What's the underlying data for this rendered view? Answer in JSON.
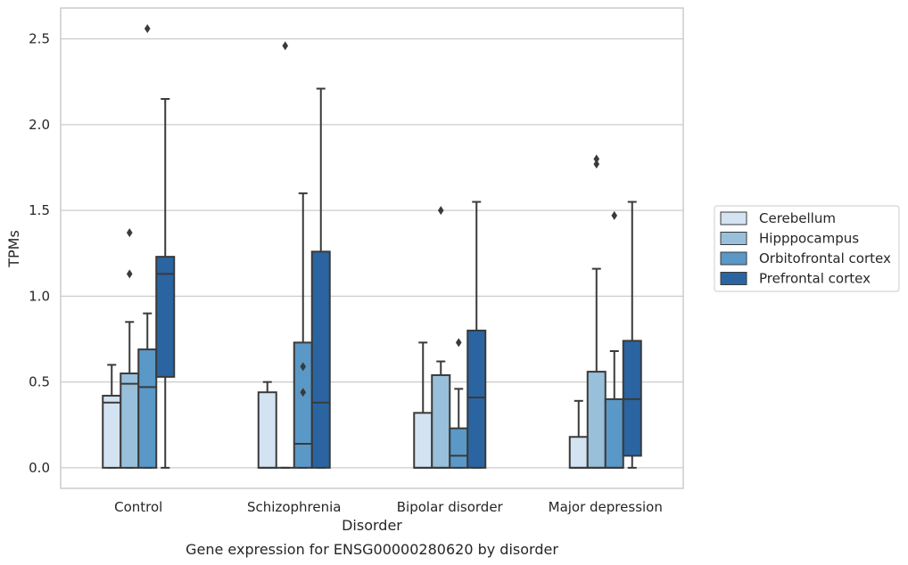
{
  "chart_data": {
    "type": "box",
    "caption": "Gene expression for ENSG00000280620 by disorder",
    "xlabel": "Disorder",
    "ylabel": "TPMs",
    "ylim": [
      -0.12,
      2.68
    ],
    "yticks": [
      "0.0",
      "0.5",
      "1.0",
      "1.5",
      "2.0",
      "2.5"
    ],
    "ytick_values": [
      0.0,
      0.5,
      1.0,
      1.5,
      2.0,
      2.5
    ],
    "grid": "horizontal",
    "legend_position": "right",
    "categories": [
      "Control",
      "Schizophrenia",
      "Bipolar disorder",
      "Major depression"
    ],
    "series": [
      {
        "name": "Cerebellum",
        "color": "#d4e3f2",
        "boxes": [
          {
            "whisker_low": 0.0,
            "q1": 0.0,
            "median": 0.38,
            "q3": 0.42,
            "whisker_high": 0.6,
            "outliers": []
          },
          {
            "whisker_low": 0.0,
            "q1": 0.0,
            "median": 0.0,
            "q3": 0.44,
            "whisker_high": 0.5,
            "outliers": []
          },
          {
            "whisker_low": 0.0,
            "q1": 0.0,
            "median": 0.0,
            "q3": 0.32,
            "whisker_high": 0.73,
            "outliers": []
          },
          {
            "whisker_low": 0.0,
            "q1": 0.0,
            "median": 0.0,
            "q3": 0.18,
            "whisker_high": 0.39,
            "outliers": []
          }
        ]
      },
      {
        "name": "Hipppocampus",
        "color": "#98c0da",
        "boxes": [
          {
            "whisker_low": 0.0,
            "q1": 0.0,
            "median": 0.49,
            "q3": 0.55,
            "whisker_high": 0.85,
            "outliers": [
              1.13,
              1.37
            ]
          },
          {
            "whisker_low": 0.0,
            "q1": 0.0,
            "median": 0.0,
            "q3": 0.0,
            "whisker_high": 0.0,
            "outliers": [
              2.46
            ]
          },
          {
            "whisker_low": 0.0,
            "q1": 0.0,
            "median": 0.0,
            "q3": 0.54,
            "whisker_high": 0.62,
            "outliers": [
              1.5
            ]
          },
          {
            "whisker_low": 0.0,
            "q1": 0.0,
            "median": 0.0,
            "q3": 0.56,
            "whisker_high": 1.16,
            "outliers": [
              1.77,
              1.8
            ]
          }
        ]
      },
      {
        "name": "Orbitofrontal cortex",
        "color": "#5a98c7",
        "boxes": [
          {
            "whisker_low": 0.0,
            "q1": 0.0,
            "median": 0.47,
            "q3": 0.69,
            "whisker_high": 0.9,
            "outliers": [
              2.56
            ]
          },
          {
            "whisker_low": 0.0,
            "q1": 0.0,
            "median": 0.14,
            "q3": 0.73,
            "whisker_high": 1.6,
            "outliers": [
              0.44,
              0.59
            ]
          },
          {
            "whisker_low": 0.0,
            "q1": 0.0,
            "median": 0.07,
            "q3": 0.23,
            "whisker_high": 0.46,
            "outliers": [
              0.73
            ]
          },
          {
            "whisker_low": 0.0,
            "q1": 0.0,
            "median": 0.0,
            "q3": 0.4,
            "whisker_high": 0.68,
            "outliers": [
              1.47
            ]
          }
        ]
      },
      {
        "name": "Prefrontal cortex",
        "color": "#2a65a2",
        "boxes": [
          {
            "whisker_low": 0.0,
            "q1": 0.53,
            "median": 1.13,
            "q3": 1.23,
            "whisker_high": 2.15,
            "outliers": []
          },
          {
            "whisker_low": 0.0,
            "q1": 0.0,
            "median": 0.38,
            "q3": 1.26,
            "whisker_high": 2.21,
            "outliers": []
          },
          {
            "whisker_low": 0.0,
            "q1": 0.0,
            "median": 0.41,
            "q3": 0.8,
            "whisker_high": 1.55,
            "outliers": []
          },
          {
            "whisker_low": 0.0,
            "q1": 0.07,
            "median": 0.4,
            "q3": 0.74,
            "whisker_high": 1.55,
            "outliers": []
          }
        ]
      }
    ]
  }
}
